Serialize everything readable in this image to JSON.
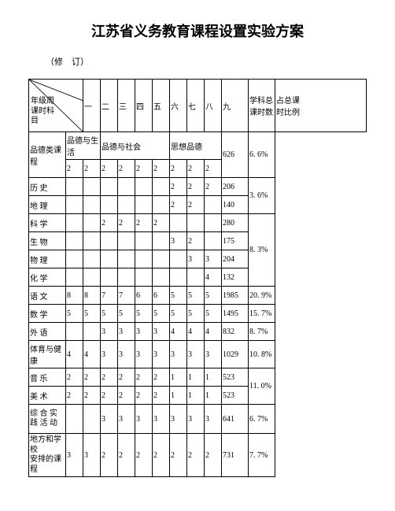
{
  "title": "江苏省义务教育课程设置实验方案",
  "revision": "（修　订）",
  "header": {
    "corner_top": "年级周\n课时科\n目",
    "grades": [
      "一",
      "二",
      "三",
      "四",
      "五",
      "六",
      "七",
      "八",
      "九"
    ],
    "total": "学科总\n课时数",
    "pct": "占总课\n时比例"
  },
  "rows": {
    "moral": {
      "label": "品德类课程",
      "span1": "品德与生活",
      "span2": "品德与社会",
      "span3": "思想品德",
      "cells": [
        "2",
        "2",
        "2",
        "2",
        "2",
        "2",
        "2",
        "2",
        "2"
      ],
      "total": "626",
      "pct": "6. 6%"
    },
    "history": {
      "label": "历 史",
      "cells": [
        "",
        "",
        "",
        "",
        "",
        "",
        "2",
        "2",
        "2"
      ],
      "total": "206",
      "pct_span": "3. 6%"
    },
    "geography": {
      "label": "地 理",
      "cells": [
        "",
        "",
        "",
        "",
        "",
        "",
        "2",
        "2",
        ""
      ],
      "total": "140"
    },
    "science": {
      "label": "科 学",
      "cells": [
        "",
        "",
        "2",
        "2",
        "2",
        "2",
        "",
        "",
        ""
      ],
      "total": "280",
      "pct_span": "8. 3%"
    },
    "biology": {
      "label": "生 物",
      "cells": [
        "",
        "",
        "",
        "",
        "",
        "",
        "3",
        "2",
        ""
      ],
      "total": "175"
    },
    "physics": {
      "label": "物 理",
      "cells": [
        "",
        "",
        "",
        "",
        "",
        "",
        "",
        "3",
        "3"
      ],
      "total": "204"
    },
    "chemistry": {
      "label": "化 学",
      "cells": [
        "",
        "",
        "",
        "",
        "",
        "",
        "",
        "",
        "4"
      ],
      "total": "132"
    },
    "chinese": {
      "label": "语 文",
      "cells": [
        "8",
        "8",
        "7",
        "7",
        "6",
        "6",
        "5",
        "5",
        "5"
      ],
      "total": "1985",
      "pct": "20. 9%"
    },
    "math": {
      "label": "数 学",
      "cells": [
        "5",
        "5",
        "5",
        "5",
        "5",
        "5",
        "5",
        "5",
        "5"
      ],
      "total": "1495",
      "pct": "15. 7%"
    },
    "foreign": {
      "label": "外 语",
      "cells": [
        "",
        "",
        "3",
        "3",
        "3",
        "3",
        "4",
        "4",
        "4"
      ],
      "total": "832",
      "pct": "8. 7%"
    },
    "pe": {
      "label": "体育与健康",
      "cells": [
        "4",
        "4",
        "3",
        "3",
        "3",
        "3",
        "3",
        "3",
        "3"
      ],
      "total": "1029",
      "pct": "10. 8%"
    },
    "music": {
      "label": "音 乐",
      "cells": [
        "2",
        "2",
        "2",
        "2",
        "2",
        "2",
        "1",
        "1",
        "1"
      ],
      "total": "523",
      "pct_span": "11. 0%"
    },
    "art": {
      "label": "美 术",
      "cells": [
        "2",
        "2",
        "2",
        "2",
        "2",
        "2",
        "1",
        "1",
        "1"
      ],
      "total": "523"
    },
    "practice": {
      "label": "综 合 实\n践 活 动",
      "cells": [
        "",
        "",
        "3",
        "3",
        "3",
        "3",
        "3",
        "3",
        "3"
      ],
      "total": "641",
      "pct": "6. 7%"
    },
    "local": {
      "label": "地方和学校\n安排的课程",
      "cells": [
        "3",
        "3",
        "2",
        "2",
        "2",
        "2",
        "2",
        "2",
        "2"
      ],
      "total": "731",
      "pct": "7. 7%"
    }
  }
}
